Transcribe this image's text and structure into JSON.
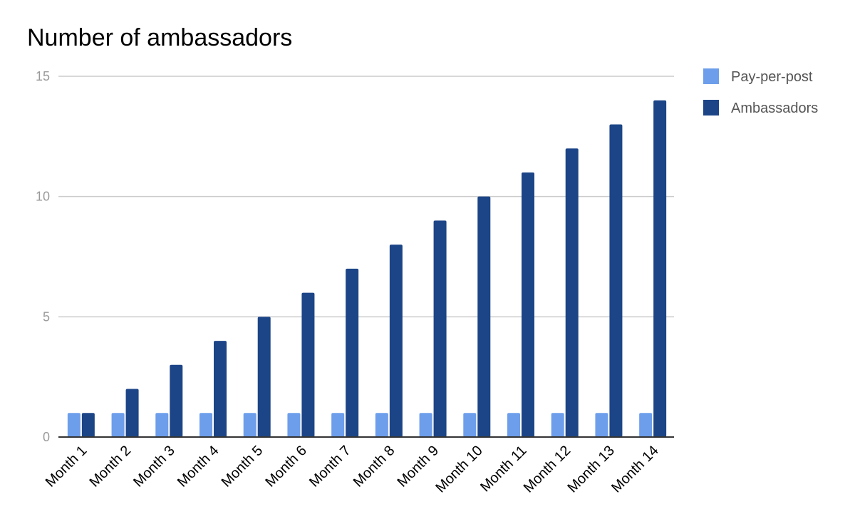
{
  "chart_data": {
    "type": "bar",
    "title": "Number of ambassadors",
    "xlabel": "",
    "ylabel": "",
    "categories": [
      "Month 1",
      "Month 2",
      "Month 3",
      "Month 4",
      "Month 5",
      "Month 6",
      "Month 7",
      "Month 8",
      "Month 9",
      "Month 10",
      "Month 11",
      "Month 12",
      "Month 13",
      "Month 14"
    ],
    "series": [
      {
        "name": "Pay-per-post",
        "color": "#6d9eeb",
        "values": [
          1,
          1,
          1,
          1,
          1,
          1,
          1,
          1,
          1,
          1,
          1,
          1,
          1,
          1
        ]
      },
      {
        "name": "Ambassadors",
        "color": "#1c4587",
        "values": [
          1,
          2,
          3,
          4,
          5,
          6,
          7,
          8,
          9,
          10,
          11,
          12,
          13,
          14
        ]
      }
    ],
    "ylim": [
      0,
      15
    ],
    "yticks": [
      0,
      5,
      10,
      15
    ],
    "grid": true,
    "legend_position": "right"
  }
}
